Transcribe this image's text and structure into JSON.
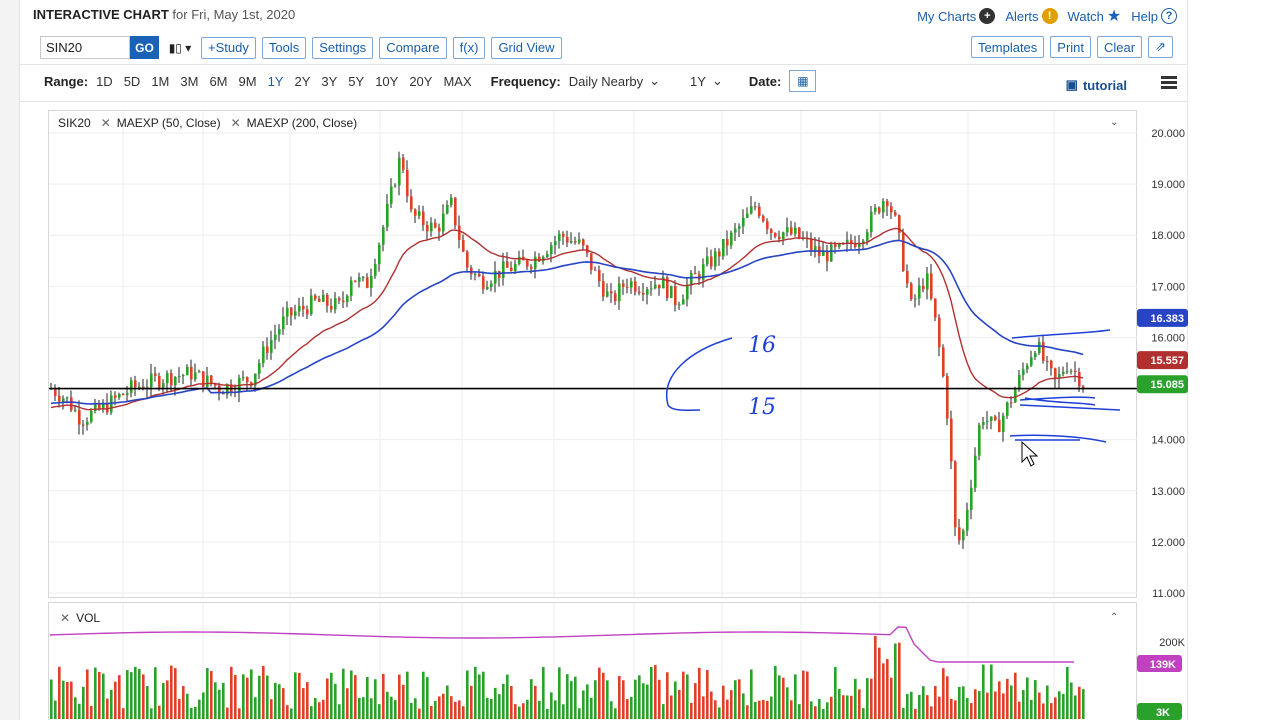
{
  "header": {
    "title": "INTERACTIVE CHART",
    "subtitle": "for Fri, May 1st, 2020",
    "links": [
      {
        "label": "My Charts",
        "icon": "plus-circle-icon"
      },
      {
        "label": "Alerts",
        "icon": "alert-icon"
      },
      {
        "label": "Watch",
        "icon": "star-icon"
      },
      {
        "label": "Help",
        "icon": "help-icon"
      }
    ]
  },
  "toolbar": {
    "symbol": "SIN20",
    "go": "GO",
    "buttons": [
      "+Study",
      "Tools",
      "Settings",
      "Compare",
      "f(x)",
      "Grid View"
    ],
    "right_buttons": [
      "Templates",
      "Print",
      "Clear"
    ],
    "expand_icon": "expand-icon"
  },
  "range": {
    "label": "Range:",
    "options": [
      "1D",
      "5D",
      "1M",
      "3M",
      "6M",
      "9M",
      "1Y",
      "2Y",
      "3Y",
      "5Y",
      "10Y",
      "20Y",
      "MAX"
    ],
    "active": "1Y",
    "frequency_label": "Frequency:",
    "frequency_value": "Daily Nearby",
    "period_value": "1Y",
    "date_label": "Date:"
  },
  "tutorial": {
    "label": "tutorial"
  },
  "legend": {
    "symbol": "SIK20",
    "ma50": "MAEXP (50, Close)",
    "ma200": "MAEXP (200, Close)"
  },
  "volume_panel": {
    "label": "VOL"
  },
  "colors": {
    "accent": "#1a62b7",
    "up": "#2aa12a",
    "down": "#e0402a",
    "ma50": "#b03030",
    "ma200": "#2644c4",
    "vol_avg": "#c040c0"
  },
  "chart_data": {
    "type": "candlestick",
    "ylim": [
      11.0,
      20.0
    ],
    "yticks": [
      "20.000",
      "19.000",
      "18.000",
      "17.000",
      "16.000",
      "15.000",
      "14.000",
      "13.000",
      "12.000",
      "11.000"
    ],
    "price_tags": [
      {
        "value": "16.383",
        "color": "#2644c4"
      },
      {
        "value": "15.557",
        "color": "#b03030"
      },
      {
        "value": "15.085",
        "color": "#2aa12a"
      }
    ],
    "volume_ticks": [
      "200K"
    ],
    "volume_tags": [
      {
        "value": "139K",
        "color": "#c040c0"
      },
      {
        "value": "3K",
        "color": "#2aa12a"
      }
    ],
    "horizontal_level": 15.0,
    "handwritten": [
      "16",
      "15"
    ]
  }
}
